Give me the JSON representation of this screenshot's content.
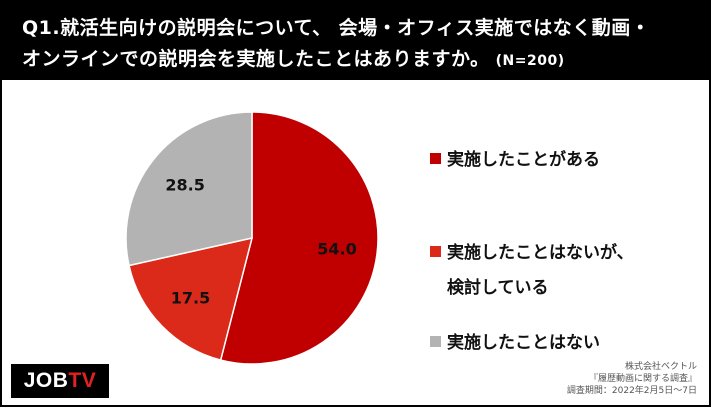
{
  "header": {
    "title_line1": "Q1.就活生向けの説明会について、 会場・オフィス実施ではなく動画・",
    "title_line2": "オンラインでの説明会を実施したことはありますか。",
    "sample_size": "(N=200)"
  },
  "chart_data": {
    "type": "pie",
    "categories": [
      "実施したことがある",
      "実施したことはないが、検討している",
      "実施したことはない"
    ],
    "values": [
      54.0,
      17.5,
      28.5
    ],
    "labels": [
      "54.0",
      "17.5",
      "28.5"
    ],
    "colors": [
      "#c00000",
      "#db2a1a",
      "#b3b3b3"
    ],
    "start": "12 o'clock, clockwise"
  },
  "legend": [
    {
      "line1": "実施したことがある",
      "line2": ""
    },
    {
      "line1": "実施したことはないが、",
      "line2": "検討している"
    },
    {
      "line1": "実施したことはない",
      "line2": ""
    }
  ],
  "logo": {
    "job": "JOB",
    "tv": "TV"
  },
  "source": {
    "line1": "株式会社ベクトル",
    "line2": "『履歴動画に関する調査』",
    "line3": "調査期間：2022年2月5日～7日"
  }
}
